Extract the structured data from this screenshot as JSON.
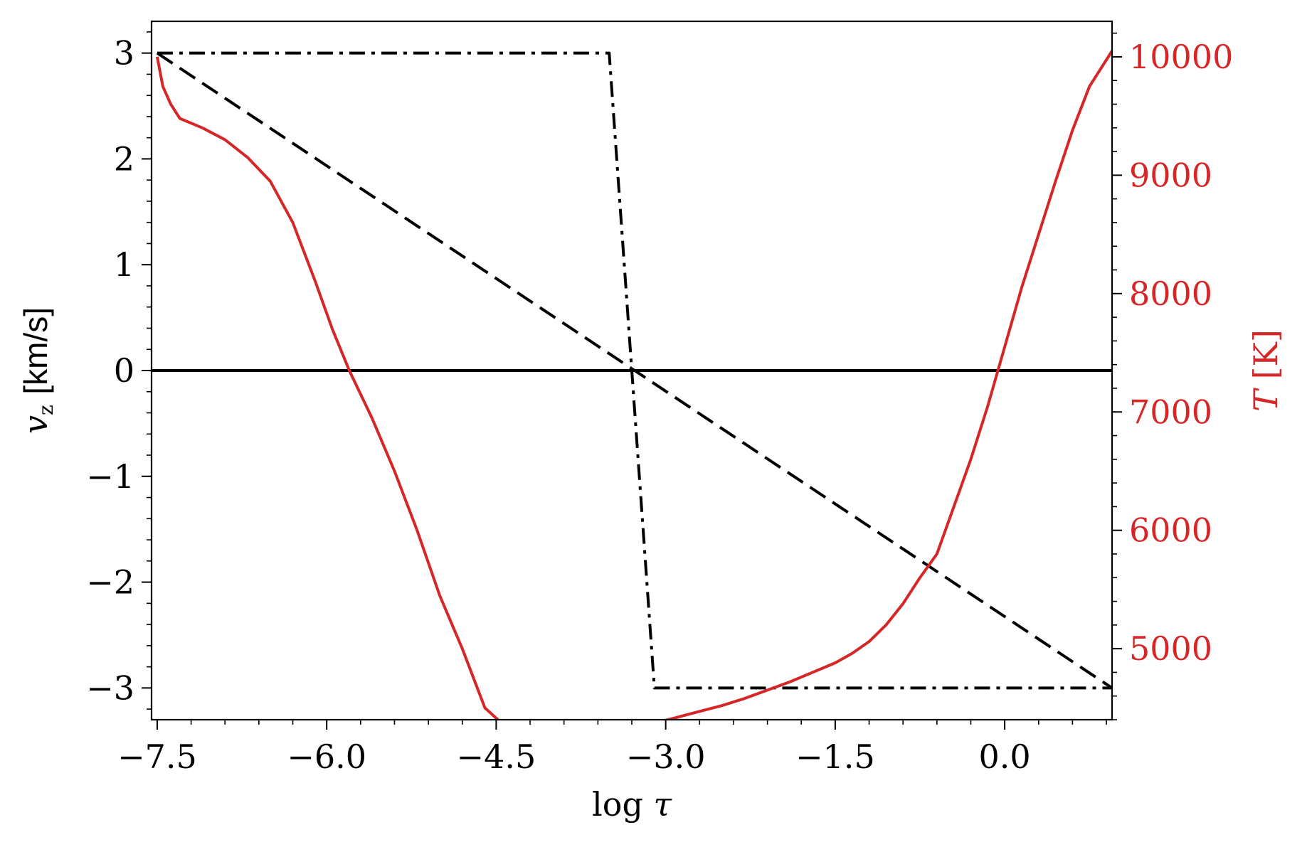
{
  "chart_data": {
    "type": "line",
    "xlabel": "log τ",
    "ylabel_left": "v_z [km/s]",
    "ylabel_left_parts": {
      "symbol": "v",
      "sub": "z",
      "unit": "[km/s]"
    },
    "ylabel_right": "T [K]",
    "ylabel_right_parts": {
      "symbol": "T",
      "unit": "[K]"
    },
    "xlim": [
      -7.55,
      0.95
    ],
    "ylim_left": [
      -3.3,
      3.3
    ],
    "ylim_right": [
      4400,
      10300
    ],
    "xticks": [
      -7.5,
      -6.0,
      -4.5,
      -3.0,
      -1.5,
      0.0
    ],
    "xtick_labels": [
      "−7.5",
      "−6.0",
      "−4.5",
      "−3.0",
      "−1.5",
      "0.0"
    ],
    "yticks_left": [
      3,
      2,
      1,
      0,
      -1,
      -2,
      -3
    ],
    "ytick_labels_left": [
      "3",
      "2",
      "1",
      "0",
      "−1",
      "−2",
      "−3"
    ],
    "yticks_right": [
      10000,
      9000,
      8000,
      7000,
      6000,
      5000
    ],
    "ytick_labels_right": [
      "10000",
      "9000",
      "8000",
      "7000",
      "6000",
      "5000"
    ],
    "grid": false,
    "colors": {
      "velocity": "#000000",
      "temperature": "#d62728"
    },
    "series": [
      {
        "axis": "left",
        "style": "solid",
        "x": [
          -7.55,
          0.95
        ],
        "y": [
          0,
          0
        ]
      },
      {
        "axis": "left",
        "style": "dashed",
        "x": [
          -7.5,
          0.95
        ],
        "y": [
          3,
          -3
        ]
      },
      {
        "axis": "left",
        "style": "dashdot",
        "x": [
          -7.5,
          -3.5,
          -3.1,
          0.95
        ],
        "y": [
          3,
          3,
          -3,
          -3
        ]
      },
      {
        "axis": "right",
        "style": "solid",
        "x": [
          -7.5,
          -7.45,
          -7.38,
          -7.3,
          -7.1,
          -6.9,
          -6.7,
          -6.5,
          -6.3,
          -6.1,
          -5.95,
          -5.8,
          -5.6,
          -5.4,
          -5.2,
          -5.0,
          -4.8,
          -4.6,
          -4.45,
          -4.3,
          -4.1,
          -3.9,
          -3.7,
          -3.5,
          -3.3,
          -3.1,
          -2.9,
          -2.7,
          -2.5,
          -2.3,
          -2.1,
          -1.9,
          -1.7,
          -1.5,
          -1.35,
          -1.2,
          -1.05,
          -0.9,
          -0.75,
          -0.6,
          -0.45,
          -0.3,
          -0.15,
          0.0,
          0.15,
          0.3,
          0.45,
          0.6,
          0.75,
          0.95
        ],
        "y": [
          10000,
          9750,
          9600,
          9480,
          9400,
          9300,
          9150,
          8950,
          8600,
          8100,
          7700,
          7350,
          6950,
          6500,
          6000,
          5450,
          5000,
          4500,
          4370,
          4290,
          4260,
          4250,
          4260,
          4280,
          4320,
          4370,
          4420,
          4470,
          4520,
          4580,
          4650,
          4720,
          4800,
          4880,
          4960,
          5060,
          5200,
          5380,
          5600,
          5800,
          6200,
          6600,
          7050,
          7550,
          8050,
          8500,
          8950,
          9380,
          9750,
          10050
        ]
      }
    ]
  }
}
